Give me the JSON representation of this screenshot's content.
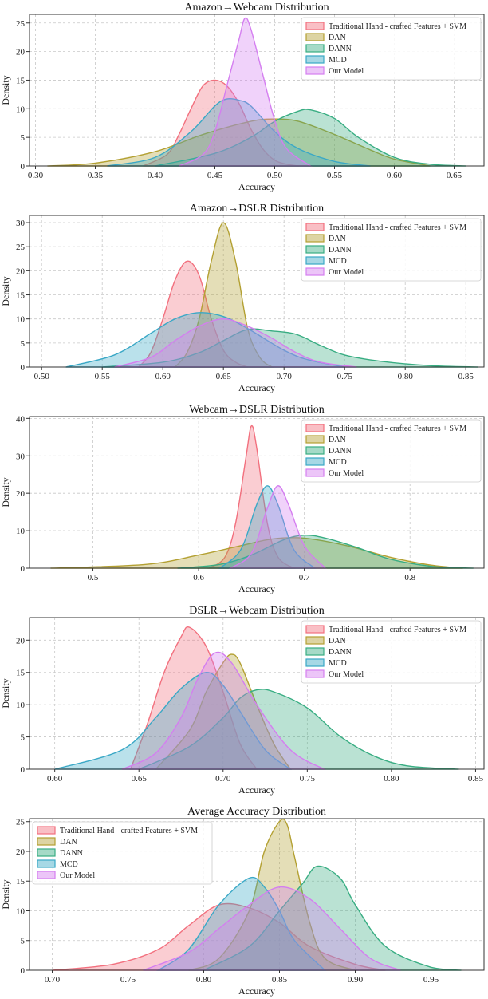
{
  "chart_data": [
    {
      "type": "area",
      "title": "Amazon→Webcam Distribution",
      "xlabel": "Accuracy",
      "ylabel": "Density",
      "xlim": [
        0.295,
        0.675
      ],
      "ylim": [
        0,
        26.5
      ],
      "xticks": [
        "0.30",
        "0.35",
        "0.40",
        "0.45",
        "0.50",
        "0.55",
        "0.60",
        "0.65"
      ],
      "yticks": [
        "0",
        "5",
        "10",
        "15",
        "20",
        "25"
      ],
      "legend_position": "top-right",
      "series": [
        {
          "name": "Traditional Hand - crafted Features + SVM",
          "color": "#f2707e",
          "x": [
            0.39,
            0.41,
            0.42,
            0.43,
            0.44,
            0.45,
            0.46,
            0.47,
            0.48,
            0.49,
            0.5,
            0.51,
            0.52
          ],
          "y": [
            0,
            2.0,
            5.5,
            10,
            14,
            15,
            14,
            11,
            6.5,
            3,
            1,
            0.3,
            0
          ]
        },
        {
          "name": "DAN",
          "color": "#b3a032",
          "x": [
            0.31,
            0.35,
            0.4,
            0.44,
            0.48,
            0.5,
            0.52,
            0.55,
            0.58,
            0.6,
            0.63
          ],
          "y": [
            0,
            0.5,
            2.5,
            5.5,
            7.8,
            8.2,
            7.8,
            5.5,
            2.8,
            1.2,
            0
          ]
        },
        {
          "name": "DANN",
          "color": "#38ad82",
          "x": [
            0.4,
            0.45,
            0.48,
            0.5,
            0.52,
            0.53,
            0.55,
            0.57,
            0.6,
            0.63,
            0.66
          ],
          "y": [
            0,
            2.2,
            5.0,
            7.8,
            9.6,
            9.8,
            8.3,
            5.0,
            1.5,
            0.3,
            0
          ]
        },
        {
          "name": "MCD",
          "color": "#3aa8c6",
          "x": [
            0.36,
            0.4,
            0.43,
            0.45,
            0.46,
            0.47,
            0.48,
            0.5,
            0.52,
            0.55,
            0.58
          ],
          "y": [
            0,
            1.5,
            6.0,
            10.5,
            11.7,
            11.5,
            10.5,
            6.0,
            3.0,
            0.8,
            0
          ]
        },
        {
          "name": "Our Model",
          "color": "#d47ef0",
          "x": [
            0.42,
            0.44,
            0.45,
            0.46,
            0.47,
            0.475,
            0.48,
            0.49,
            0.5,
            0.51,
            0.53
          ],
          "y": [
            0,
            2.0,
            6.0,
            14.0,
            22.0,
            25.8,
            24.0,
            16.0,
            8.0,
            3.0,
            0
          ]
        }
      ]
    },
    {
      "type": "area",
      "title": "Amazon→DSLR Distribution",
      "xlabel": "Accuracy",
      "ylabel": "Density",
      "xlim": [
        0.49,
        0.865
      ],
      "ylim": [
        0,
        31.5
      ],
      "xticks": [
        "0.50",
        "0.55",
        "0.60",
        "0.65",
        "0.70",
        "0.75",
        "0.80",
        "0.85"
      ],
      "yticks": [
        "0",
        "5",
        "10",
        "15",
        "20",
        "25",
        "30"
      ],
      "legend_position": "top-right",
      "series": [
        {
          "name": "Traditional Hand - crafted Features + SVM",
          "color": "#f2707e",
          "x": [
            0.58,
            0.59,
            0.6,
            0.61,
            0.62,
            0.63,
            0.64,
            0.65,
            0.66,
            0.67
          ],
          "y": [
            0,
            3,
            10,
            18,
            22,
            19,
            10,
            3.5,
            1,
            0
          ]
        },
        {
          "name": "DAN",
          "color": "#b3a032",
          "x": [
            0.61,
            0.62,
            0.63,
            0.64,
            0.65,
            0.66,
            0.67,
            0.68,
            0.69
          ],
          "y": [
            0,
            3,
            10,
            22,
            30,
            22,
            8,
            2,
            0
          ]
        },
        {
          "name": "DANN",
          "color": "#38ad82",
          "x": [
            0.55,
            0.6,
            0.63,
            0.65,
            0.67,
            0.69,
            0.71,
            0.73,
            0.75,
            0.78,
            0.82,
            0.86
          ],
          "y": [
            0,
            1.0,
            3.0,
            5.5,
            7.8,
            7.5,
            6.8,
            4.5,
            2.5,
            1.2,
            0.3,
            0
          ]
        },
        {
          "name": "MCD",
          "color": "#3aa8c6",
          "x": [
            0.52,
            0.56,
            0.59,
            0.61,
            0.63,
            0.65,
            0.67,
            0.7,
            0.72,
            0.75
          ],
          "y": [
            0,
            2.5,
            7.0,
            10.0,
            11.3,
            10.5,
            8.0,
            3.5,
            1.5,
            0
          ]
        },
        {
          "name": "Our Model",
          "color": "#d47ef0",
          "x": [
            0.56,
            0.59,
            0.61,
            0.63,
            0.65,
            0.67,
            0.69,
            0.71,
            0.73,
            0.76
          ],
          "y": [
            0,
            2.0,
            5.5,
            8.5,
            10.0,
            8.5,
            6.0,
            3.0,
            1.0,
            0
          ]
        }
      ]
    },
    {
      "type": "area",
      "title": "Webcam→DSLR Distribution",
      "xlabel": "Accuracy",
      "ylabel": "Density",
      "xlim": [
        0.44,
        0.87
      ],
      "ylim": [
        0,
        40.5
      ],
      "xticks": [
        "0.5",
        "0.6",
        "0.7",
        "0.8"
      ],
      "yticks": [
        "0",
        "10",
        "20",
        "30",
        "40"
      ],
      "legend_position": "top-right",
      "series": [
        {
          "name": "Traditional Hand - crafted Features + SVM",
          "color": "#f2707e",
          "x": [
            0.61,
            0.625,
            0.635,
            0.645,
            0.65,
            0.655,
            0.665,
            0.675,
            0.69
          ],
          "y": [
            0,
            3,
            12,
            30,
            38,
            32,
            12,
            3,
            0
          ]
        },
        {
          "name": "DAN",
          "color": "#b3a032",
          "x": [
            0.46,
            0.55,
            0.6,
            0.64,
            0.67,
            0.7,
            0.74,
            0.78,
            0.82,
            0.85
          ],
          "y": [
            0,
            1.0,
            3.5,
            6.0,
            7.8,
            8.0,
            6.0,
            3.0,
            0.8,
            0
          ]
        },
        {
          "name": "DANN",
          "color": "#38ad82",
          "x": [
            0.58,
            0.62,
            0.65,
            0.68,
            0.7,
            0.72,
            0.75,
            0.78,
            0.82,
            0.86
          ],
          "y": [
            0,
            1.0,
            3.5,
            7.5,
            8.8,
            8.0,
            5.5,
            2.5,
            0.5,
            0
          ]
        },
        {
          "name": "MCD",
          "color": "#3aa8c6",
          "x": [
            0.62,
            0.64,
            0.655,
            0.665,
            0.675,
            0.69,
            0.71
          ],
          "y": [
            0,
            5,
            17,
            22,
            17,
            5,
            0
          ]
        },
        {
          "name": "Our Model",
          "color": "#d47ef0",
          "x": [
            0.63,
            0.65,
            0.665,
            0.675,
            0.685,
            0.7,
            0.72
          ],
          "y": [
            0,
            4,
            16,
            22,
            17,
            6,
            0
          ]
        }
      ]
    },
    {
      "type": "area",
      "title": "DSLR→Webcam Distribution",
      "xlabel": "Accuracy",
      "ylabel": "Density",
      "xlim": [
        0.585,
        0.855
      ],
      "ylim": [
        0,
        23.5
      ],
      "xticks": [
        "0.60",
        "0.65",
        "0.70",
        "0.75",
        "0.80",
        "0.85"
      ],
      "yticks": [
        "0",
        "5",
        "10",
        "15",
        "20"
      ],
      "legend_position": "top-right",
      "series": [
        {
          "name": "Traditional Hand - crafted Features + SVM",
          "color": "#f2707e",
          "x": [
            0.645,
            0.655,
            0.665,
            0.675,
            0.68,
            0.69,
            0.7,
            0.71,
            0.72
          ],
          "y": [
            0,
            7,
            15,
            20.5,
            22,
            19,
            12,
            4,
            0
          ]
        },
        {
          "name": "DAN",
          "color": "#b3a032",
          "x": [
            0.66,
            0.68,
            0.69,
            0.7,
            0.705,
            0.71,
            0.72,
            0.73,
            0.74
          ],
          "y": [
            0,
            6,
            12,
            16.5,
            17.8,
            16.5,
            10,
            4,
            0
          ]
        },
        {
          "name": "DANN",
          "color": "#38ad82",
          "x": [
            0.65,
            0.68,
            0.7,
            0.71,
            0.72,
            0.73,
            0.75,
            0.77,
            0.79,
            0.81,
            0.84
          ],
          "y": [
            0,
            3.5,
            8.0,
            11.0,
            12.3,
            12.0,
            9.5,
            5.0,
            2.0,
            0.5,
            0
          ]
        },
        {
          "name": "MCD",
          "color": "#3aa8c6",
          "x": [
            0.6,
            0.64,
            0.66,
            0.675,
            0.69,
            0.7,
            0.71,
            0.725,
            0.74
          ],
          "y": [
            0,
            3,
            8,
            12.5,
            15,
            13,
            9,
            3,
            0
          ]
        },
        {
          "name": "Our Model",
          "color": "#d47ef0",
          "x": [
            0.64,
            0.66,
            0.675,
            0.685,
            0.695,
            0.705,
            0.72,
            0.74,
            0.76
          ],
          "y": [
            0,
            2.5,
            8,
            14,
            18,
            16.5,
            10,
            3,
            0
          ]
        }
      ]
    },
    {
      "type": "area",
      "title": "Average Accuracy Distribution",
      "xlabel": "Accuracy",
      "ylabel": "Density",
      "xlim": [
        0.685,
        0.985
      ],
      "ylim": [
        0,
        25.5
      ],
      "xticks": [
        "0.70",
        "0.75",
        "0.80",
        "0.85",
        "0.90",
        "0.95"
      ],
      "yticks": [
        "0",
        "5",
        "10",
        "15",
        "20",
        "25"
      ],
      "legend_position": "top-left",
      "series": [
        {
          "name": "Traditional Hand - crafted Features + SVM",
          "color": "#f2707e",
          "x": [
            0.7,
            0.74,
            0.77,
            0.79,
            0.81,
            0.83,
            0.85,
            0.87,
            0.9,
            0.92
          ],
          "y": [
            0,
            1.0,
            3.5,
            7.5,
            11.0,
            10.5,
            8.0,
            4.0,
            1.0,
            0
          ]
        },
        {
          "name": "DAN",
          "color": "#b3a032",
          "x": [
            0.79,
            0.81,
            0.83,
            0.84,
            0.85,
            0.855,
            0.86,
            0.87,
            0.88,
            0.9
          ],
          "y": [
            0,
            2,
            10,
            20,
            25,
            24.5,
            19,
            8,
            2,
            0
          ]
        },
        {
          "name": "DANN",
          "color": "#38ad82",
          "x": [
            0.8,
            0.83,
            0.85,
            0.865,
            0.875,
            0.89,
            0.9,
            0.92,
            0.95,
            0.97
          ],
          "y": [
            0,
            4,
            10,
            14.5,
            17.5,
            15.5,
            11,
            4,
            0.5,
            0
          ]
        },
        {
          "name": "MCD",
          "color": "#3aa8c6",
          "x": [
            0.77,
            0.79,
            0.81,
            0.83,
            0.84,
            0.85,
            0.86,
            0.88
          ],
          "y": [
            0,
            3.5,
            11,
            15.5,
            14,
            10,
            5,
            0
          ]
        },
        {
          "name": "Our Model",
          "color": "#d47ef0",
          "x": [
            0.76,
            0.79,
            0.81,
            0.83,
            0.85,
            0.87,
            0.89,
            0.91,
            0.93
          ],
          "y": [
            0,
            3,
            7,
            11,
            14,
            12,
            7,
            2,
            0
          ]
        }
      ]
    }
  ]
}
